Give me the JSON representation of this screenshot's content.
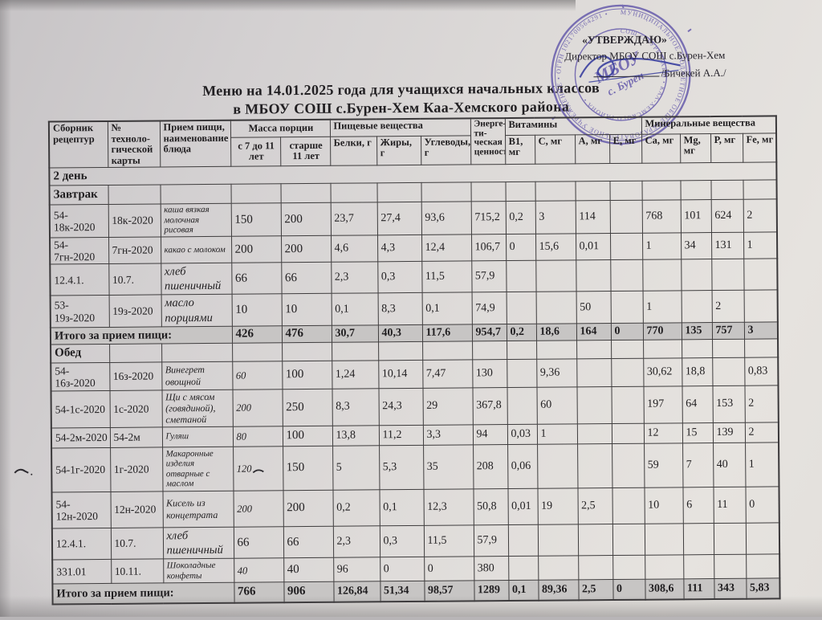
{
  "title": {
    "line1": "Меню на 14.01.2025 года для учащихся начальных классов",
    "line2": "в МБОУ СОШ с.Бурен-Хем Каа-Хемского района"
  },
  "approval": {
    "approve_label": "«УТВЕРЖДАЮ»",
    "director_line": "Директор МБОУ СОШ с.Бурен-Хем",
    "signature_name": "/Бичекей А.А./",
    "stamp": {
      "ring_outer": "МУНИЦИПАЛЬНОЕ БЮДЖЕТНОЕ ОБЩЕОБРАЗОВАТЕЛЬНОЕ УЧРЕЖДЕНИЕ • ОГРН 1021700564291 •",
      "ring_inner": "СОШ с. БУРЕН-ХЕМ • КАА-ХЕМСКОГО РАЙОНА •",
      "center_line1": "МБОУ",
      "center_line2": "с. Бурен",
      "color": "#5f53a9"
    }
  },
  "table": {
    "header_groups": [
      {
        "label": "Сборник рецептур",
        "colspan": 1,
        "rowspan": 2
      },
      {
        "label": "№ техноло-гической карты",
        "colspan": 1,
        "rowspan": 2
      },
      {
        "label": "Прием пищи, наименование блюда",
        "colspan": 1,
        "rowspan": 2
      },
      {
        "label": "Масса порции",
        "colspan": 2,
        "rowspan": 1
      },
      {
        "label": "Пищевые вещества",
        "colspan": 3,
        "rowspan": 1
      },
      {
        "label": "Энерге-ти-ческая ценность",
        "colspan": 1,
        "rowspan": 2
      },
      {
        "label": "Витамины",
        "colspan": 4,
        "rowspan": 1
      },
      {
        "label": "Минеральные вещества",
        "colspan": 4,
        "rowspan": 1
      }
    ],
    "sub_headers": [
      "с 7 до 11 лет",
      "старше 11 лет",
      "Белки, г",
      "Жиры, г",
      "Углеводы, г",
      "В1, мг",
      "С, мг",
      "А, мг",
      "Е, мг",
      "Са, мг",
      "Mg, мг",
      "Р, мг",
      "Fe, мг"
    ],
    "rows": [
      {
        "type": "day",
        "label": "2 день"
      },
      {
        "type": "meal",
        "label": "Завтрак"
      },
      {
        "type": "dish",
        "recipe": "54-18к-2020",
        "card": "18к-2020",
        "dish": "каша вязкая молочная рисовая",
        "values": [
          "150",
          "200",
          "23,7",
          "27,4",
          "93,6",
          "715,2",
          "0,2",
          "3",
          "114",
          "",
          "768",
          "101",
          "624",
          "2"
        ]
      },
      {
        "type": "dish",
        "recipe": "54-7гн-2020",
        "card": "7гн-2020",
        "dish": "какао с молоком",
        "values": [
          "200",
          "200",
          "4,6",
          "4,3",
          "12,4",
          "106,7",
          "0",
          "15,6",
          "0,01",
          "",
          "1",
          "34",
          "131",
          "1"
        ]
      },
      {
        "type": "dish",
        "recipe": "12.4.1.",
        "card": "10.7.",
        "dish": "хлеб пшеничный",
        "values": [
          "66",
          "66",
          "2,3",
          "0,3",
          "11,5",
          "57,9",
          "",
          "",
          "",
          "",
          "",
          "",
          "",
          ""
        ]
      },
      {
        "type": "dish",
        "recipe": "53-19з-2020",
        "card": "19з-2020",
        "dish": "масло порциями",
        "values": [
          "10",
          "10",
          "0,1",
          "8,3",
          "0,1",
          "74,9",
          "",
          "",
          "50",
          "",
          "1",
          "",
          "2",
          ""
        ]
      },
      {
        "type": "total",
        "label": "Итого за прием пищи:",
        "values": [
          "426",
          "476",
          "30,7",
          "40,3",
          "117,6",
          "954,7",
          "0,2",
          "18,6",
          "164",
          "0",
          "770",
          "135",
          "757",
          "3"
        ]
      },
      {
        "type": "meal",
        "label": "Обед"
      },
      {
        "type": "dish",
        "recipe": "54-16з-2020",
        "card": "16з-2020",
        "dish": "Винегрет овощной",
        "values": [
          "60",
          "100",
          "1,24",
          "10,14",
          "7,47",
          "130",
          "",
          "9,36",
          "",
          "",
          "30,62",
          "18,8",
          "",
          "0,83"
        ]
      },
      {
        "type": "dish",
        "recipe": "54-1с-2020",
        "card": "1с-2020",
        "dish": "Щи с мясом (говядиной), сметаной",
        "values": [
          "200",
          "250",
          "8,3",
          "24,3",
          "29",
          "367,8",
          "",
          "60",
          "",
          "",
          "197",
          "64",
          "153",
          "2"
        ]
      },
      {
        "type": "dish",
        "recipe": "54-2м-2020",
        "card": "54-2м",
        "dish": "Гуляш",
        "values": [
          "80",
          "100",
          "13,8",
          "11,2",
          "3,3",
          "94",
          "0,03",
          "1",
          "",
          "",
          "12",
          "15",
          "139",
          "2"
        ]
      },
      {
        "type": "dish",
        "recipe": "54-1г-2020",
        "card": "1г-2020",
        "dish": "Макаронные изделия отварные с маслом",
        "values": [
          "120",
          "150",
          "5",
          "5,3",
          "35",
          "208",
          "0,06",
          "",
          "",
          "",
          "59",
          "7",
          "40",
          "1"
        ]
      },
      {
        "type": "dish",
        "recipe": "54-12н-2020",
        "card": "12н-2020",
        "dish": "Кисель из концетрата",
        "values": [
          "200",
          "200",
          "0,2",
          "0,1",
          "12,3",
          "50,8",
          "0,01",
          "19",
          "2,5",
          "",
          "10",
          "6",
          "11",
          "0"
        ]
      },
      {
        "type": "dish",
        "recipe": "12.4.1.",
        "card": "10.7.",
        "dish": "хлеб пшеничный",
        "values": [
          "66",
          "66",
          "2,3",
          "0,3",
          "11,5",
          "57,9",
          "",
          "",
          "",
          "",
          "",
          "",
          "",
          ""
        ]
      },
      {
        "type": "dish",
        "recipe": "331.01",
        "card": "10.11.",
        "dish": "Шоколадные конфеты",
        "values": [
          "40",
          "40",
          "96",
          "0",
          "0",
          "380",
          "",
          "",
          "",
          "",
          "",
          "",
          "",
          ""
        ]
      },
      {
        "type": "total",
        "label": "Итого за прием пищи:",
        "values": [
          "766",
          "906",
          "126,84",
          "51,34",
          "98,57",
          "1289",
          "0,1",
          "89,36",
          "2,5",
          "0",
          "308,6",
          "111",
          "343",
          "5,83"
        ]
      }
    ]
  }
}
